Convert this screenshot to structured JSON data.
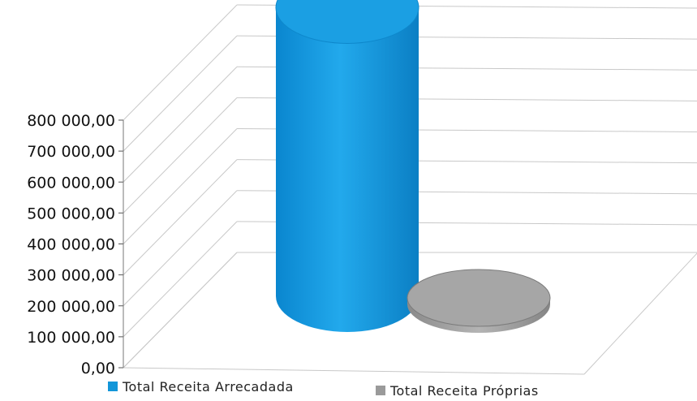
{
  "chart_data": {
    "type": "bar",
    "title": "",
    "xlabel": "",
    "ylabel": "",
    "ylim": [
      0,
      800000
    ],
    "y_ticks": [
      {
        "value": 0,
        "label": "0,00"
      },
      {
        "value": 100000,
        "label": "100 000,00"
      },
      {
        "value": 200000,
        "label": "200 000,00"
      },
      {
        "value": 300000,
        "label": "300 000,00"
      },
      {
        "value": 400000,
        "label": "400 000,00"
      },
      {
        "value": 500000,
        "label": "500 000,00"
      },
      {
        "value": 600000,
        "label": "600 000,00"
      },
      {
        "value": 700000,
        "label": "700 000,00"
      },
      {
        "value": 800000,
        "label": "800 000,00"
      }
    ],
    "grid": true,
    "style": "3d-cylinder",
    "legend_position": "bottom",
    "series": [
      {
        "name": "Total Receita Arrecadada",
        "value": 790000,
        "color": "#1296d9"
      },
      {
        "name": "Total Receita Próprias",
        "value": 15000,
        "color": "#9a9a9a"
      }
    ]
  }
}
